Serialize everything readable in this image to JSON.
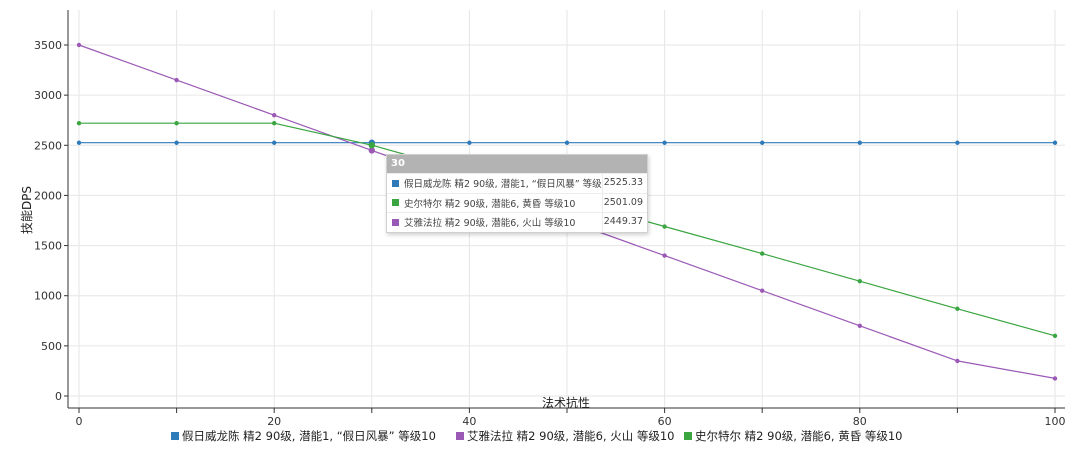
{
  "chart_data": {
    "type": "line",
    "xlabel": "法术抗性",
    "ylabel": "技能DPS",
    "xlim": [
      0,
      100
    ],
    "ylim": [
      0,
      3500
    ],
    "x_ticks": [
      0,
      20,
      40,
      60,
      80,
      100
    ],
    "y_ticks": [
      0,
      500,
      1000,
      1500,
      2000,
      2500,
      3000,
      3500
    ],
    "grid": true,
    "legend_position": "bottom",
    "x": [
      0,
      10,
      20,
      30,
      40,
      50,
      60,
      70,
      80,
      90,
      100
    ],
    "series": [
      {
        "name": "假日威龙陈 精2 90级, 潜能1, “假日风暴” 等级10",
        "color": "#2f7ab8",
        "values": [
          2525.33,
          2525.33,
          2525.33,
          2525.33,
          2525.33,
          2525.33,
          2525.33,
          2525.33,
          2525.33,
          2525.33,
          2525.33
        ]
      },
      {
        "name": "艾雅法拉 精2 90级, 潜能6, 火山 等级10",
        "color": "#9b59b6",
        "values": [
          3500,
          3150,
          2800,
          2449.37,
          2100,
          1750,
          1400,
          1050,
          700,
          350,
          175
        ]
      },
      {
        "name": "史尔特尔 精2 90级, 潜能6, 黄昏 等级10",
        "color": "#3aa541",
        "values": [
          2720,
          2720,
          2720,
          2501.09,
          2230,
          1960,
          1690,
          1420,
          1145,
          870,
          600
        ]
      }
    ]
  },
  "tooltip": {
    "title": "30",
    "rows": [
      {
        "label": "假日威龙陈 精2 90级, 潜能1, “假日风暴” 等级10",
        "value": "2525.33",
        "color": "#2f7ab8"
      },
      {
        "label": "史尔特尔 精2 90级, 潜能6, 黄昏 等级10",
        "value": "2501.09",
        "color": "#3aa541"
      },
      {
        "label": "艾雅法拉 精2 90级, 潜能6, 火山 等级10",
        "value": "2449.37",
        "color": "#9b59b6"
      }
    ]
  }
}
